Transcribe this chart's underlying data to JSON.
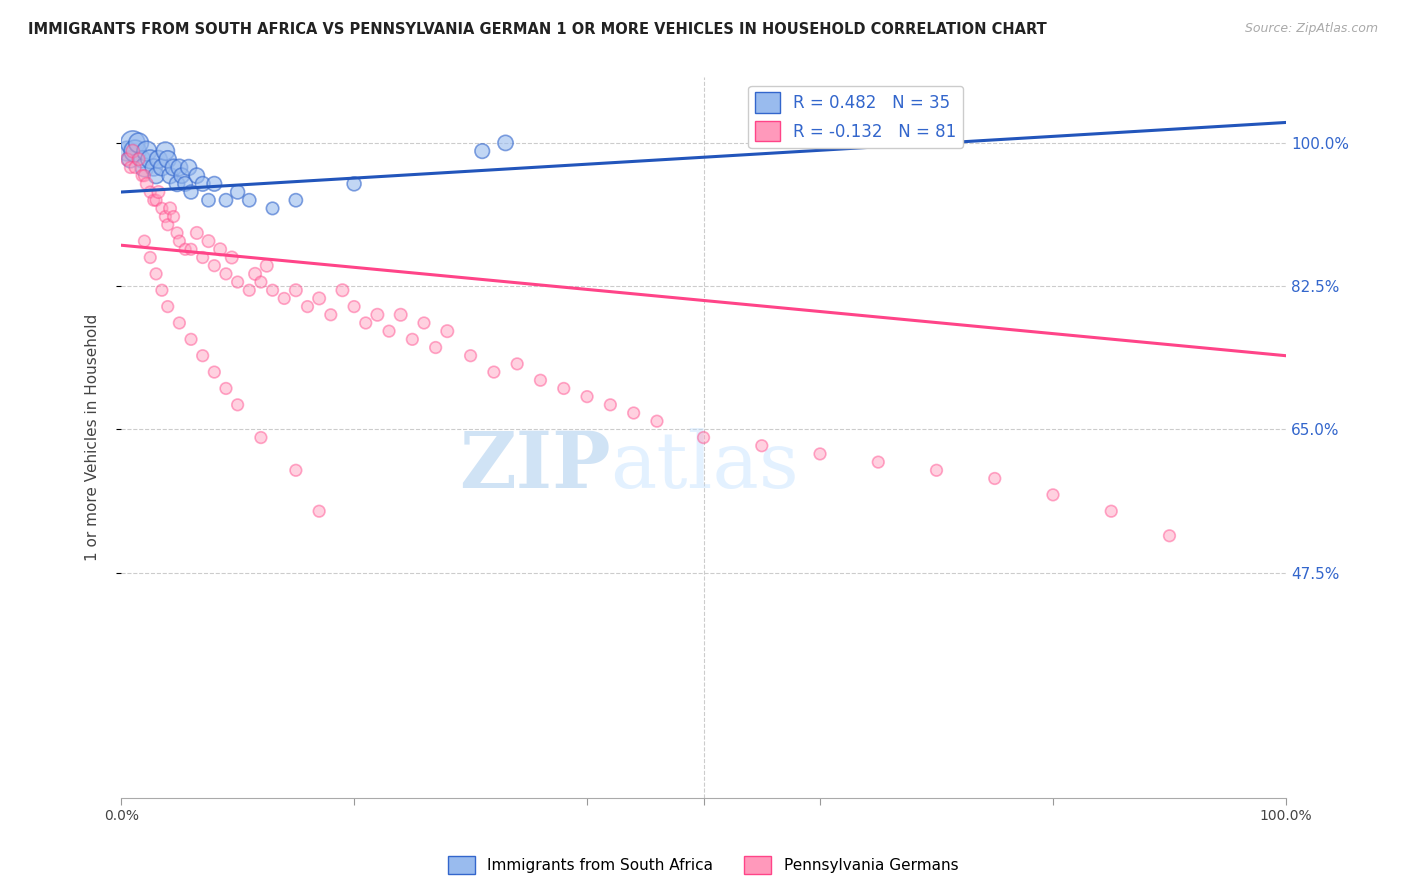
{
  "title": "IMMIGRANTS FROM SOUTH AFRICA VS PENNSYLVANIA GERMAN 1 OR MORE VEHICLES IN HOUSEHOLD CORRELATION CHART",
  "source": "Source: ZipAtlas.com",
  "ylabel": "1 or more Vehicles in Household",
  "ytick_labels": [
    "100.0%",
    "82.5%",
    "65.0%",
    "47.5%"
  ],
  "ytick_values": [
    1.0,
    0.825,
    0.65,
    0.475
  ],
  "xlim": [
    0.0,
    1.0
  ],
  "ylim": [
    0.2,
    1.08
  ],
  "legend_r1": "R = 0.482",
  "legend_n1": "N = 35",
  "legend_r2": "R = -0.132",
  "legend_n2": "N = 81",
  "color_blue_fill": "#99BBEE",
  "color_blue_edge": "#3366CC",
  "color_pink_fill": "#FF99BB",
  "color_pink_edge": "#FF4488",
  "color_blue_line": "#2255BB",
  "color_pink_line": "#FF4488",
  "watermark_zip": "ZIP",
  "watermark_atlas": "atlas",
  "blue_trend_x": [
    0.0,
    1.0
  ],
  "blue_trend_y": [
    0.94,
    1.025
  ],
  "pink_trend_x": [
    0.0,
    1.0
  ],
  "pink_trend_y": [
    0.875,
    0.74
  ],
  "blue_scatter_x": [
    0.005,
    0.008,
    0.01,
    0.012,
    0.015,
    0.018,
    0.02,
    0.022,
    0.025,
    0.028,
    0.03,
    0.032,
    0.035,
    0.038,
    0.04,
    0.042,
    0.045,
    0.048,
    0.05,
    0.052,
    0.055,
    0.058,
    0.06,
    0.065,
    0.07,
    0.075,
    0.08,
    0.09,
    0.1,
    0.11,
    0.13,
    0.15,
    0.2,
    0.31,
    0.33
  ],
  "blue_scatter_y": [
    0.99,
    0.98,
    1.0,
    0.99,
    1.0,
    0.98,
    0.97,
    0.99,
    0.98,
    0.97,
    0.96,
    0.98,
    0.97,
    0.99,
    0.98,
    0.96,
    0.97,
    0.95,
    0.97,
    0.96,
    0.95,
    0.97,
    0.94,
    0.96,
    0.95,
    0.93,
    0.95,
    0.93,
    0.94,
    0.93,
    0.92,
    0.93,
    0.95,
    0.99,
    1.0
  ],
  "blue_scatter_size": [
    200,
    150,
    300,
    250,
    200,
    150,
    180,
    200,
    180,
    150,
    130,
    160,
    140,
    170,
    150,
    130,
    140,
    120,
    140,
    120,
    110,
    130,
    100,
    120,
    110,
    90,
    110,
    90,
    100,
    90,
    80,
    90,
    100,
    110,
    120
  ],
  "pink_scatter_x": [
    0.005,
    0.008,
    0.01,
    0.012,
    0.015,
    0.018,
    0.02,
    0.022,
    0.025,
    0.028,
    0.03,
    0.032,
    0.035,
    0.038,
    0.04,
    0.042,
    0.045,
    0.048,
    0.05,
    0.055,
    0.06,
    0.065,
    0.07,
    0.075,
    0.08,
    0.085,
    0.09,
    0.095,
    0.1,
    0.11,
    0.115,
    0.12,
    0.125,
    0.13,
    0.14,
    0.15,
    0.16,
    0.17,
    0.18,
    0.19,
    0.2,
    0.21,
    0.22,
    0.23,
    0.24,
    0.25,
    0.26,
    0.27,
    0.28,
    0.3,
    0.32,
    0.34,
    0.36,
    0.38,
    0.4,
    0.42,
    0.44,
    0.46,
    0.5,
    0.55,
    0.6,
    0.65,
    0.7,
    0.75,
    0.8,
    0.85,
    0.9,
    0.02,
    0.025,
    0.03,
    0.035,
    0.04,
    0.05,
    0.06,
    0.07,
    0.08,
    0.09,
    0.1,
    0.12,
    0.15,
    0.17
  ],
  "pink_scatter_y": [
    0.98,
    0.97,
    0.99,
    0.97,
    0.98,
    0.96,
    0.96,
    0.95,
    0.94,
    0.93,
    0.93,
    0.94,
    0.92,
    0.91,
    0.9,
    0.92,
    0.91,
    0.89,
    0.88,
    0.87,
    0.87,
    0.89,
    0.86,
    0.88,
    0.85,
    0.87,
    0.84,
    0.86,
    0.83,
    0.82,
    0.84,
    0.83,
    0.85,
    0.82,
    0.81,
    0.82,
    0.8,
    0.81,
    0.79,
    0.82,
    0.8,
    0.78,
    0.79,
    0.77,
    0.79,
    0.76,
    0.78,
    0.75,
    0.77,
    0.74,
    0.72,
    0.73,
    0.71,
    0.7,
    0.69,
    0.68,
    0.67,
    0.66,
    0.64,
    0.63,
    0.62,
    0.61,
    0.6,
    0.59,
    0.57,
    0.55,
    0.52,
    0.88,
    0.86,
    0.84,
    0.82,
    0.8,
    0.78,
    0.76,
    0.74,
    0.72,
    0.7,
    0.68,
    0.64,
    0.6,
    0.55
  ],
  "pink_scatter_size": [
    80,
    70,
    90,
    70,
    80,
    70,
    70,
    80,
    70,
    70,
    70,
    80,
    70,
    70,
    70,
    80,
    70,
    70,
    70,
    70,
    70,
    80,
    70,
    80,
    70,
    80,
    70,
    80,
    70,
    70,
    80,
    70,
    80,
    70,
    70,
    80,
    70,
    80,
    70,
    80,
    70,
    70,
    80,
    70,
    80,
    70,
    70,
    70,
    80,
    70,
    70,
    70,
    70,
    70,
    70,
    70,
    70,
    70,
    70,
    70,
    70,
    70,
    70,
    70,
    70,
    70,
    70,
    70,
    70,
    70,
    70,
    70,
    70,
    70,
    70,
    70,
    70,
    70,
    70,
    70,
    70
  ]
}
